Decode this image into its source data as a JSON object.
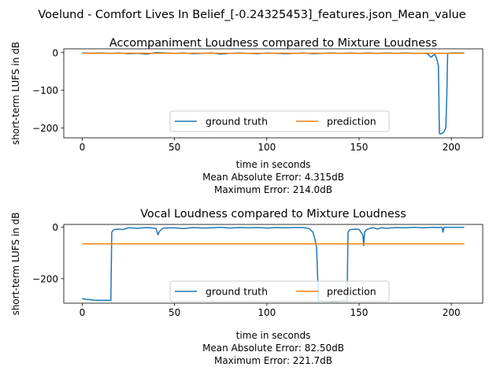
{
  "figure": {
    "suptitle": "Voelund - Comfort Lives In Belief_[-0.24325453]_features.json_Mean_value"
  },
  "chart_data": [
    {
      "type": "line",
      "title": "Accompaniment Loudness compared to Mixture Loudness",
      "xlabel": "time in seconds",
      "ylabel": "short-term LUFS in dB",
      "xlim": [
        -10,
        217
      ],
      "ylim": [
        -226,
        10
      ],
      "xticks": [
        0,
        50,
        100,
        150,
        200
      ],
      "yticks": [
        0,
        -100,
        -200
      ],
      "grid": false,
      "legend_position": "lower center",
      "annotations": [
        "Mean Absolute Error: 4.315dB",
        "Maximum Error: 214.0dB"
      ],
      "series": [
        {
          "name": "ground truth",
          "color": "#1f77b4",
          "points": [
            [
              0,
              -1
            ],
            [
              5,
              -1.5
            ],
            [
              10,
              -1
            ],
            [
              15,
              -2
            ],
            [
              20,
              -1
            ],
            [
              25,
              -3
            ],
            [
              30,
              -2
            ],
            [
              35,
              -4
            ],
            [
              40,
              0
            ],
            [
              45,
              -1
            ],
            [
              50,
              -2
            ],
            [
              55,
              -1
            ],
            [
              60,
              -3
            ],
            [
              65,
              -2
            ],
            [
              70,
              -1
            ],
            [
              75,
              -4
            ],
            [
              80,
              -2
            ],
            [
              85,
              -1
            ],
            [
              90,
              -2
            ],
            [
              95,
              -3
            ],
            [
              100,
              -1
            ],
            [
              105,
              -2
            ],
            [
              110,
              -3
            ],
            [
              115,
              -2
            ],
            [
              120,
              -1
            ],
            [
              125,
              -3
            ],
            [
              130,
              -2
            ],
            [
              135,
              -1
            ],
            [
              140,
              -2
            ],
            [
              145,
              -1
            ],
            [
              150,
              -2
            ],
            [
              155,
              -1
            ],
            [
              160,
              -2
            ],
            [
              165,
              -1
            ],
            [
              170,
              -2
            ],
            [
              175,
              -1
            ],
            [
              180,
              -2
            ],
            [
              185,
              -2
            ],
            [
              187,
              -3
            ],
            [
              189,
              -12
            ],
            [
              190,
              -8
            ],
            [
              191,
              -5
            ],
            [
              192,
              -15
            ],
            [
              193,
              -35
            ],
            [
              193.5,
              -214
            ],
            [
              194,
              -216
            ],
            [
              195,
              -214
            ],
            [
              196,
              -210
            ],
            [
              197,
              -200
            ],
            [
              197.5,
              -120
            ],
            [
              198,
              -2
            ],
            [
              200,
              -1
            ],
            [
              205,
              -1
            ],
            [
              207,
              -1
            ]
          ]
        },
        {
          "name": "prediction",
          "color": "#ff7f0e",
          "points": [
            [
              0,
              -1.8
            ],
            [
              207,
              -1.8
            ]
          ]
        }
      ]
    },
    {
      "type": "line",
      "title": "Vocal Loudness compared to Mixture Loudness",
      "xlabel": "time in seconds",
      "ylabel": "short-term LUFS in dB",
      "xlim": [
        -10,
        217
      ],
      "ylim": [
        -295,
        10
      ],
      "xticks": [
        0,
        50,
        100,
        150,
        200
      ],
      "yticks": [
        0,
        -200
      ],
      "grid": false,
      "legend_position": "lower center",
      "annotations": [
        "Mean Absolute Error: 82.50dB",
        "Maximum Error: 221.7dB"
      ],
      "series": [
        {
          "name": "ground truth",
          "color": "#1f77b4",
          "points": [
            [
              0,
              -277
            ],
            [
              2,
              -280
            ],
            [
              4,
              -281
            ],
            [
              6,
              -283
            ],
            [
              10,
              -284
            ],
            [
              14,
              -284
            ],
            [
              15.5,
              -284
            ],
            [
              16,
              -20
            ],
            [
              17,
              -10
            ],
            [
              20,
              -8
            ],
            [
              22,
              -10
            ],
            [
              25,
              -3
            ],
            [
              30,
              -5
            ],
            [
              35,
              -2
            ],
            [
              38,
              -4
            ],
            [
              40,
              -6
            ],
            [
              41,
              -30
            ],
            [
              42,
              -15
            ],
            [
              44,
              -4
            ],
            [
              50,
              -3
            ],
            [
              55,
              -6
            ],
            [
              60,
              -2
            ],
            [
              65,
              -4
            ],
            [
              70,
              -3
            ],
            [
              75,
              -1
            ],
            [
              80,
              -4
            ],
            [
              85,
              -2
            ],
            [
              90,
              -3
            ],
            [
              95,
              -2
            ],
            [
              100,
              -4
            ],
            [
              105,
              -2
            ],
            [
              110,
              -3
            ],
            [
              115,
              -2
            ],
            [
              120,
              -2
            ],
            [
              123,
              -6
            ],
            [
              125,
              -20
            ],
            [
              126,
              -45
            ],
            [
              127,
              -80
            ],
            [
              128,
              -287
            ],
            [
              132,
              -288
            ],
            [
              136,
              -289
            ],
            [
              140,
              -288
            ],
            [
              143,
              -286
            ],
            [
              143.5,
              -287
            ],
            [
              144,
              -20
            ],
            [
              145,
              -10
            ],
            [
              148,
              -8
            ],
            [
              150,
              -9
            ],
            [
              151,
              -20
            ],
            [
              152,
              -30
            ],
            [
              152.5,
              -72
            ],
            [
              153,
              -20
            ],
            [
              154,
              -10
            ],
            [
              156,
              -5
            ],
            [
              158,
              -3
            ],
            [
              160,
              -8
            ],
            [
              162,
              -3
            ],
            [
              165,
              -5
            ],
            [
              170,
              -2
            ],
            [
              175,
              -3
            ],
            [
              180,
              -1
            ],
            [
              185,
              -3
            ],
            [
              190,
              -1
            ],
            [
              193,
              -2
            ],
            [
              194,
              -1
            ],
            [
              195,
              -2
            ],
            [
              195.5,
              -20
            ],
            [
              196,
              -1
            ],
            [
              200,
              -1
            ],
            [
              207,
              -1
            ]
          ]
        },
        {
          "name": "prediction",
          "color": "#ff7f0e",
          "points": [
            [
              0,
              -65
            ],
            [
              207,
              -65
            ]
          ]
        }
      ]
    }
  ]
}
